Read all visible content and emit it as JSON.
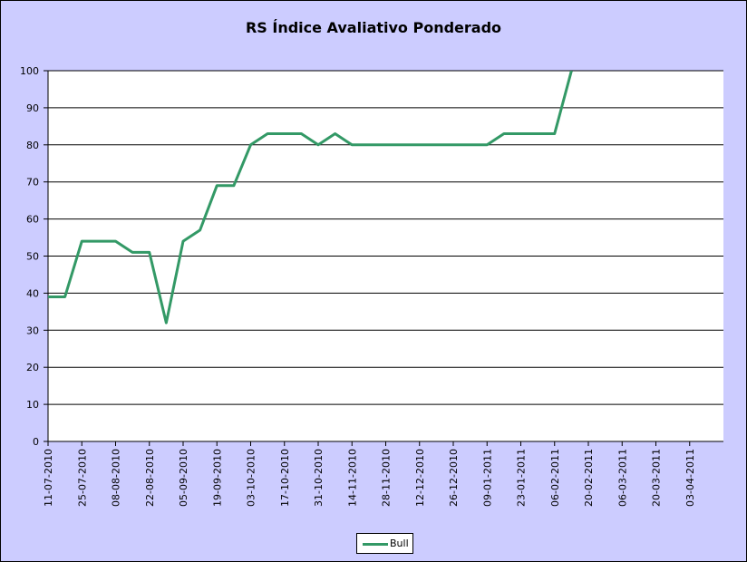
{
  "chart_data": {
    "type": "line",
    "title": "RS Índice Avaliativo Ponderado",
    "xlabel": "",
    "ylabel": "",
    "ylim": [
      0,
      100
    ],
    "y_ticks": [
      "0",
      "10",
      "20",
      "30",
      "40",
      "50",
      "60",
      "70",
      "80",
      "90",
      "100"
    ],
    "x_tick_labels": [
      "11-07-2010",
      "25-07-2010",
      "08-08-2010",
      "22-08-2010",
      "05-09-2010",
      "19-09-2010",
      "03-10-2010",
      "17-10-2010",
      "31-10-2010",
      "14-11-2010",
      "28-11-2010",
      "12-12-2010",
      "26-12-2010",
      "09-01-2011",
      "23-01-2011",
      "06-02-2011",
      "20-02-2011",
      "06-03-2011",
      "20-03-2011",
      "03-04-2011"
    ],
    "x": [
      "11-07-2010",
      "18-07-2010",
      "25-07-2010",
      "01-08-2010",
      "08-08-2010",
      "15-08-2010",
      "22-08-2010",
      "29-08-2010",
      "05-09-2010",
      "12-09-2010",
      "19-09-2010",
      "26-09-2010",
      "03-10-2010",
      "10-10-2010",
      "17-10-2010",
      "24-10-2010",
      "31-10-2010",
      "07-11-2010",
      "14-11-2010",
      "21-11-2010",
      "28-11-2010",
      "05-12-2010",
      "12-12-2010",
      "19-12-2010",
      "26-12-2010",
      "02-01-2011",
      "09-01-2011",
      "16-01-2011",
      "23-01-2011",
      "30-01-2011",
      "06-02-2011",
      "13-02-2011"
    ],
    "series": [
      {
        "name": "Bull",
        "color": "#339966",
        "values": [
          39,
          39,
          54,
          54,
          54,
          51,
          51,
          32,
          54,
          57,
          69,
          69,
          80,
          83,
          83,
          83,
          80,
          83,
          80,
          80,
          80,
          80,
          80,
          80,
          80,
          80,
          80,
          83,
          83,
          83,
          83,
          100
        ]
      }
    ],
    "grid": "horizontal",
    "legend_position": "bottom"
  },
  "colors": {
    "frame_background": "#ccccff",
    "plot_background": "#ffffff",
    "gridline": "#000000"
  }
}
